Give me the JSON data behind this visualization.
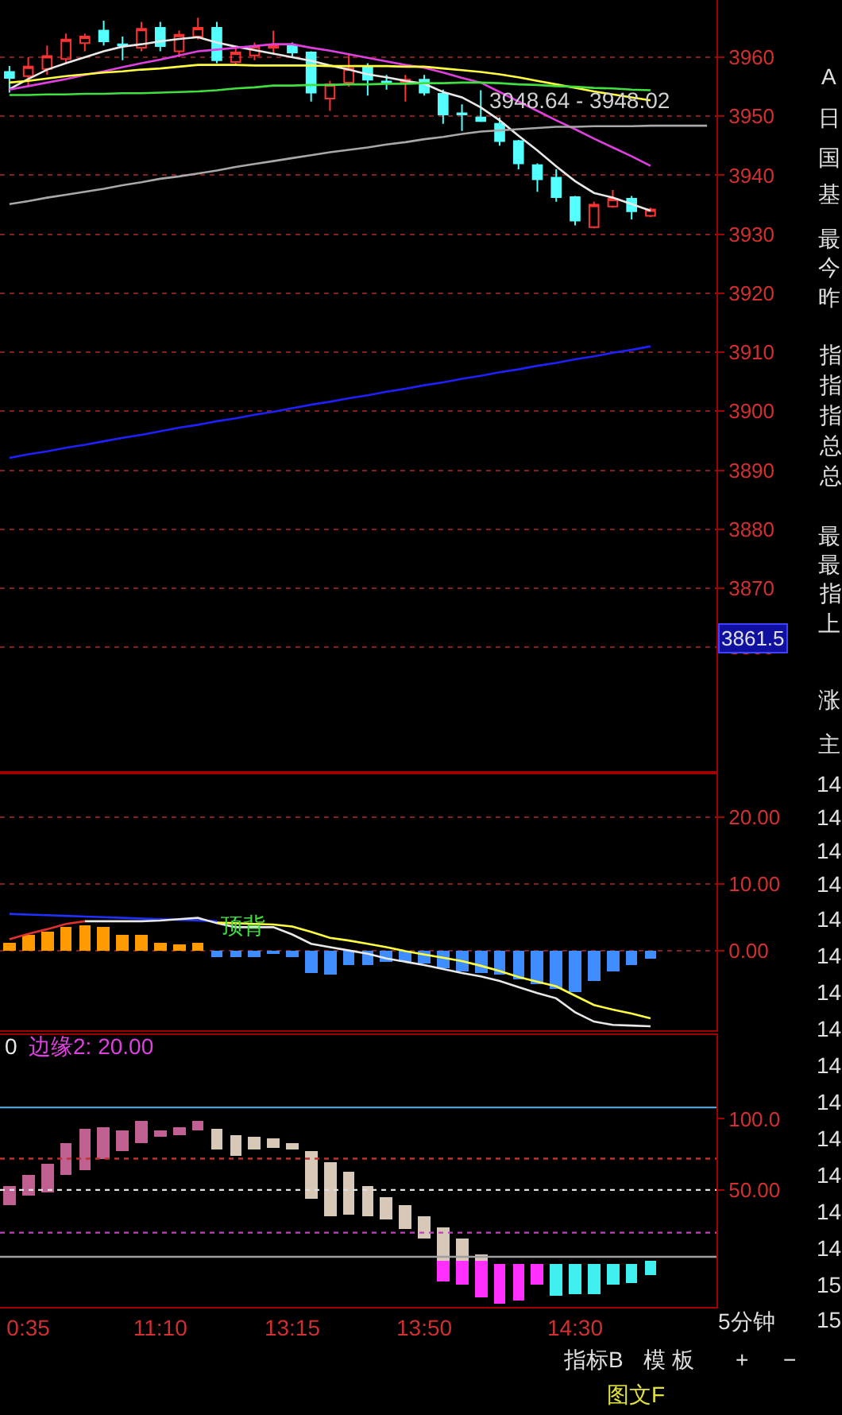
{
  "chart_data": [
    {
      "type": "candlestick",
      "categories": [
        null,
        null,
        null,
        null,
        null,
        null,
        null,
        null,
        null,
        null,
        null,
        null,
        null,
        null,
        null,
        null,
        null,
        null,
        null,
        null,
        null,
        null,
        null,
        null,
        null,
        null,
        null,
        null,
        null,
        null,
        null,
        null,
        null,
        null,
        null,
        null,
        null,
        null
      ],
      "ohlc": [
        [
          3957.5,
          3958.5,
          3954,
          3956.5
        ],
        [
          3956.8,
          3960,
          3955,
          3958.4
        ],
        [
          3958,
          3962,
          3957,
          3960.2
        ],
        [
          3959.7,
          3964,
          3959,
          3963
        ],
        [
          3962.4,
          3964,
          3961,
          3963.5
        ],
        [
          3964.5,
          3966.2,
          3962,
          3962.7
        ],
        [
          3962.2,
          3963.5,
          3959.5,
          3962
        ],
        [
          3961.6,
          3966,
          3961,
          3964.8
        ],
        [
          3965,
          3966,
          3961,
          3961.9
        ],
        [
          3961,
          3964.5,
          3960,
          3963.8
        ],
        [
          3963.5,
          3966.7,
          3963,
          3965
        ],
        [
          3965,
          3966,
          3959,
          3959.5
        ],
        [
          3959.2,
          3961.5,
          3958.5,
          3960.8
        ],
        [
          3960.3,
          3962.5,
          3959.5,
          3961.9
        ],
        [
          3961.6,
          3964.5,
          3960.5,
          3962
        ],
        [
          3962,
          3962.5,
          3960,
          3960.8
        ],
        [
          3960.8,
          3961,
          3952.5,
          3954
        ],
        [
          3953,
          3956,
          3950.9,
          3955.4
        ],
        [
          3955.7,
          3960.5,
          3955,
          3958.1
        ],
        [
          3958.4,
          3959,
          3953.5,
          3956.2
        ],
        [
          3955.9,
          3957,
          3954.5,
          3955.7
        ],
        [
          3955.7,
          3957,
          3952.5,
          3956.2
        ],
        [
          3956.2,
          3957,
          3953.5,
          3954
        ],
        [
          3953.8,
          3954.5,
          3948.7,
          3950.3
        ],
        [
          3950.5,
          3952,
          3947.5,
          3950.3
        ],
        [
          3949.8,
          3954.4,
          3949,
          3949.2
        ],
        [
          3948.7,
          3949.8,
          3945,
          3945.8
        ],
        [
          3945.8,
          3946,
          3941,
          3942
        ],
        [
          3941.7,
          3942,
          3937.2,
          3939.3
        ],
        [
          3939.6,
          3941,
          3935.5,
          3936.3
        ],
        [
          3936.3,
          3936.5,
          3931.5,
          3932.3
        ],
        [
          3931.2,
          3935.5,
          3931,
          3935
        ],
        [
          3934.7,
          3937.5,
          3934.5,
          3936
        ],
        [
          3936,
          3936.5,
          3932.5,
          3933.9
        ],
        [
          3933.1,
          3934.5,
          3932.9,
          3934.2
        ],
        null,
        null,
        null
      ],
      "colors": [
        "#54ffff",
        "#ff3232",
        "#ff3232",
        "#ff3232",
        "#ff3232",
        "#54ffff",
        "#54ffff",
        "#ff3232",
        "#54ffff",
        "#ff3232",
        "#ff3232",
        "#54ffff",
        "#ff3232",
        "#ff3232",
        "#ff3232",
        "#54ffff",
        "#54ffff",
        "#ff3232",
        "#ff3232",
        "#54ffff",
        "#54ffff",
        "#ff3232",
        "#54ffff",
        "#54ffff",
        "#54ffff",
        "#54ffff",
        "#54ffff",
        "#54ffff",
        "#54ffff",
        "#54ffff",
        "#54ffff",
        "#ff3232",
        "#ff3232",
        "#54ffff",
        "#ff3232",
        null,
        null,
        null
      ],
      "series": [
        {
          "type": "line",
          "color": "#e8e8e8",
          "values": [
            3954.6,
            3956.3,
            3957.9,
            3959.0,
            3960.0,
            3961.0,
            3961.8,
            3962.2,
            3962.7,
            3963.1,
            3963.4,
            3962.5,
            3961.8,
            3961.2,
            3960.6,
            3960.0,
            3959.4,
            3958.6,
            3957.9,
            3957.1,
            3956.6,
            3956.0,
            3955.5,
            3954.1,
            3953.2,
            3951.5,
            3949.3,
            3946.7,
            3944.2,
            3941.5,
            3939.0,
            3937.0,
            3936.2,
            3935.1,
            3934.0,
            null,
            null,
            null
          ]
        },
        {
          "type": "line",
          "color": "#e040e0",
          "values": [
            3954.5,
            3955.1,
            3955.7,
            3956.3,
            3957.0,
            3957.6,
            3958.3,
            3959.0,
            3959.6,
            3960.3,
            3961.0,
            3961.3,
            3961.6,
            3961.9,
            3962.2,
            3962.2,
            3961.6,
            3961.1,
            3960.5,
            3959.9,
            3959.3,
            3958.7,
            3958.2,
            3957.4,
            3956.5,
            3955.7,
            3954.1,
            3952.5,
            3950.9,
            3949.3,
            3947.8,
            3946.2,
            3944.7,
            3943.2,
            3941.6,
            null,
            null,
            null
          ]
        },
        {
          "type": "line",
          "color": "#ffff40",
          "values": [
            3955.7,
            3956.0,
            3956.4,
            3956.8,
            3957.1,
            3957.4,
            3957.6,
            3957.9,
            3958.1,
            3958.4,
            3958.7,
            3958.7,
            3958.7,
            3958.6,
            3958.6,
            3958.6,
            3958.6,
            3958.5,
            3958.5,
            3958.5,
            3958.5,
            3958.4,
            3958.4,
            3958.1,
            3957.8,
            3957.5,
            3957.1,
            3956.6,
            3956.0,
            3955.4,
            3954.8,
            3954.2,
            3953.7,
            3953.2,
            3952.7,
            null,
            null,
            null
          ]
        },
        {
          "type": "line",
          "color": "#40e040",
          "values": [
            3953.6,
            3953.6,
            3953.7,
            3953.7,
            3953.8,
            3953.8,
            3953.9,
            3953.9,
            3954.0,
            3954.1,
            3954.2,
            3954.4,
            3954.7,
            3954.9,
            3955.2,
            3955.2,
            3955.3,
            3955.3,
            3955.4,
            3955.4,
            3955.5,
            3955.5,
            3955.6,
            3955.6,
            3955.7,
            3955.7,
            3955.6,
            3955.4,
            3955.3,
            3955.1,
            3955.0,
            3954.8,
            3954.7,
            3954.5,
            3954.4,
            null,
            null,
            null
          ]
        },
        {
          "type": "line",
          "color": "#a8a8a8",
          "values": [
            3935.1,
            3935.6,
            3936.2,
            3936.7,
            3937.2,
            3937.7,
            3938.3,
            3938.8,
            3939.4,
            3939.8,
            3940.3,
            3940.8,
            3941.4,
            3941.9,
            3942.4,
            3942.9,
            3943.4,
            3943.9,
            3944.3,
            3944.7,
            3945.2,
            3945.6,
            3946.1,
            3946.5,
            3947.0,
            3947.4,
            3947.6,
            3947.8,
            3948.0,
            3948.2,
            3948.2,
            3948.3,
            3948.3,
            3948.3,
            3948.4,
            3948.4,
            3948.4,
            3948.4
          ]
        },
        {
          "type": "line",
          "color": "#2020ff",
          "values": [
            3892.1,
            3892.7,
            3893.2,
            3893.8,
            3894.3,
            3894.9,
            3895.5,
            3896.0,
            3896.6,
            3897.2,
            3897.7,
            3898.3,
            3898.8,
            3899.4,
            3899.9,
            3900.5,
            3901.1,
            3901.6,
            3902.2,
            3902.7,
            3903.3,
            3903.8,
            3904.4,
            3904.9,
            3905.5,
            3906.0,
            3906.6,
            3907.1,
            3907.7,
            3908.2,
            3908.8,
            3909.3,
            3909.9,
            3910.4,
            3911.0,
            null,
            null,
            null
          ]
        }
      ],
      "ylim": [
        3839,
        3969.7
      ],
      "yticks": [
        3860,
        3870,
        3880,
        3890,
        3900,
        3910,
        3920,
        3930,
        3940,
        3950,
        3960
      ],
      "grid": "y",
      "tick_labels": "y",
      "annotations": [
        "3948.64 - 3948.02",
        {
          "text": "3861.5",
          "y": 3861.5
        }
      ]
    },
    {
      "type": "bar",
      "categories": [
        null,
        null,
        null,
        null,
        null,
        null,
        null,
        null,
        null,
        null,
        null,
        null,
        null,
        null,
        null,
        null,
        null,
        null,
        null,
        null,
        null,
        null,
        null,
        null,
        null,
        null,
        null,
        null,
        null,
        null,
        null,
        null,
        null,
        null,
        null,
        null,
        null,
        null
      ],
      "values": [
        1.2,
        2.4,
        2.8,
        3.5,
        3.9,
        3.5,
        2.4,
        2.4,
        1.2,
        1.0,
        1.2,
        -0.9,
        -1.0,
        -0.9,
        -0.6,
        -0.9,
        -3.4,
        -3.6,
        -2.3,
        -2.1,
        -1.8,
        -1.8,
        -1.9,
        -2.7,
        -3.1,
        -3.4,
        -3.7,
        -4.3,
        -5.0,
        -5.7,
        -6.3,
        -4.7,
        -3.1,
        -2.3,
        -1.2,
        null,
        null,
        null
      ],
      "colors": [
        "#ff9a00",
        "#ff9a00",
        "#ff9a00",
        "#ff9a00",
        "#ff9a00",
        "#ff9a00",
        "#ff9a00",
        "#ff9a00",
        "#ff9a00",
        "#ff9a00",
        "#ff9a00",
        "#3f8cff",
        "#3f8cff",
        "#3f8cff",
        "#3f8cff",
        "#3f8cff",
        "#3f8cff",
        "#3f8cff",
        "#3f8cff",
        "#3f8cff",
        "#3f8cff",
        "#3f8cff",
        "#3f8cff",
        "#3f8cff",
        "#3f8cff",
        "#3f8cff",
        "#3f8cff",
        "#3f8cff",
        "#3f8cff",
        "#3f8cff",
        "#3f8cff",
        "#3f8cff",
        "#3f8cff",
        "#3f8cff",
        "#3f8cff",
        "#3f8cff",
        "#3f8cff",
        "#3f8cff"
      ],
      "series": [
        {
          "type": "line",
          "color": "#2030ff",
          "values": [
            5.5,
            5.4,
            5.3,
            5.2,
            5.1,
            5.0,
            4.9,
            4.8,
            4.7,
            4.6,
            4.5,
            4.4,
            null,
            null,
            null,
            null,
            null,
            null,
            null,
            null,
            null,
            null,
            null,
            null,
            null,
            null,
            null,
            null,
            null,
            null,
            null,
            null,
            null,
            null,
            null,
            null,
            null,
            null
          ]
        },
        {
          "type": "line",
          "color": "#e03030",
          "values": [
            1.7,
            2.5,
            3.2,
            4.0,
            4.4,
            null,
            null,
            null,
            null,
            null,
            null,
            null,
            null,
            null,
            null,
            null,
            null,
            null,
            null,
            null,
            null,
            null,
            null,
            null,
            null,
            null,
            null,
            null,
            null,
            null,
            null,
            null,
            null,
            null,
            null,
            null,
            null,
            null
          ]
        },
        {
          "type": "line",
          "color": "#e8e8e8",
          "values": [
            null,
            null,
            null,
            null,
            4.4,
            4.4,
            4.4,
            4.4,
            4.5,
            4.7,
            4.9,
            4.1,
            3.5,
            3.5,
            3.5,
            2.4,
            1.0,
            0.5,
            0,
            -0.5,
            -1.2,
            -1.7,
            -2.2,
            -2.8,
            -3.4,
            -3.9,
            -4.6,
            -5.5,
            -6.4,
            -7.2,
            -9.3,
            -10.7,
            -11.2,
            -11.3,
            -11.4,
            null,
            null,
            null
          ]
        },
        {
          "type": "line",
          "color": "#ffff40",
          "values": [
            null,
            null,
            null,
            null,
            null,
            null,
            null,
            null,
            null,
            null,
            null,
            4.2,
            4.1,
            4.0,
            3.9,
            3.6,
            2.8,
            1.9,
            1.5,
            1.0,
            0.5,
            -0.1,
            -0.6,
            -1.1,
            -1.6,
            -2.3,
            -3.1,
            -4.0,
            -4.7,
            -5.4,
            -6.8,
            -8.2,
            -8.9,
            -9.5,
            -10.2,
            null,
            null,
            null
          ]
        }
      ],
      "ylim": [
        -12,
        26.5
      ],
      "yticks": [
        {
          "value": 0,
          "label": "0.00"
        },
        {
          "value": 10,
          "label": "10.00"
        },
        {
          "value": 20,
          "label": "20.00"
        }
      ],
      "grid": "y",
      "tick_labels": "y",
      "annotations": [
        "顶背"
      ]
    },
    {
      "type": "bar",
      "categories": [
        null,
        "0:35",
        null,
        null,
        null,
        null,
        null,
        null,
        "11:10",
        null,
        null,
        null,
        null,
        null,
        null,
        "13:15",
        null,
        null,
        null,
        null,
        null,
        null,
        "13:50",
        null,
        null,
        null,
        null,
        null,
        null,
        null,
        "14:30",
        null,
        null,
        null,
        null,
        null,
        null,
        null
      ],
      "series": [
        {
          "base": [
            39,
            46,
            48,
            61,
            64,
            72,
            77,
            83,
            87,
            89,
            92,
            79,
            74,
            78,
            80,
            78,
            44,
            31,
            33,
            31,
            29,
            23,
            16,
            0,
            0,
            0,
            null,
            null,
            null,
            null,
            null,
            null,
            null,
            null,
            null,
            null,
            null,
            null
          ],
          "values": [
            14,
            15,
            20,
            22,
            29,
            22,
            15,
            16,
            5,
            5,
            7,
            14,
            15,
            9,
            6,
            5,
            33,
            39,
            30,
            22,
            16,
            16,
            16,
            24,
            16,
            5,
            null,
            null,
            null,
            null,
            null,
            null,
            null,
            null,
            null,
            null,
            null,
            null
          ],
          "colors": [
            "#c06090",
            "#c06090",
            "#c06090",
            "#c06090",
            "#c06090",
            "#c06090",
            "#c06090",
            "#c06090",
            "#c06090",
            "#c06090",
            "#c06090",
            "#d8c8b8",
            "#d8c8b8",
            "#d8c8b8",
            "#d8c8b8",
            "#d8c8b8",
            "#d8c8b8",
            "#d8c8b8",
            "#d8c8b8",
            "#d8c8b8",
            "#d8c8b8",
            "#d8c8b8",
            "#d8c8b8",
            "#d8c8b8",
            "#d8c8b8",
            "#d8c8b8",
            "#d8c8b8",
            "#d8c8b8",
            "#d8c8b8",
            "#d8c8b8",
            "#d8c8b8",
            "#d8c8b8",
            "#d8c8b8",
            "#d8c8b8",
            "#d8c8b8",
            "#d8c8b8",
            "#d8c8b8",
            "#d8c8b8"
          ]
        },
        {
          "base": [
            null,
            null,
            null,
            null,
            null,
            null,
            null,
            null,
            null,
            null,
            null,
            null,
            null,
            null,
            null,
            null,
            null,
            null,
            null,
            null,
            null,
            null,
            null,
            -14,
            -17,
            -26,
            -30,
            -28,
            -17,
            -24,
            -23,
            -23,
            -17,
            -15,
            -10,
            null,
            null,
            null
          ],
          "values": [
            null,
            null,
            null,
            null,
            null,
            null,
            null,
            null,
            null,
            null,
            null,
            null,
            null,
            null,
            null,
            null,
            null,
            null,
            null,
            null,
            null,
            null,
            null,
            14,
            17,
            26,
            28,
            26,
            15,
            22,
            21,
            21,
            15,
            13,
            10,
            null,
            null,
            null
          ],
          "colors": [
            "#ff30ff",
            "#ff30ff",
            "#ff30ff",
            "#ff30ff",
            "#ff30ff",
            "#ff30ff",
            "#ff30ff",
            "#ff30ff",
            "#ff30ff",
            "#ff30ff",
            "#ff30ff",
            "#ff30ff",
            "#ff30ff",
            "#ff30ff",
            "#ff30ff",
            "#ff30ff",
            "#ff30ff",
            "#ff30ff",
            "#ff30ff",
            "#ff30ff",
            "#ff30ff",
            "#ff30ff",
            "#ff30ff",
            "#ff30ff",
            "#ff30ff",
            "#ff30ff",
            "#ff30ff",
            "#ff30ff",
            "#ff30ff",
            "#40f0f0",
            "#40f0f0",
            "#40f0f0",
            "#40f0f0",
            "#40f0f0",
            "#40f0f0",
            "#40f0f0",
            "#40f0f0",
            "#40f0f0"
          ]
        }
      ],
      "ylim": [
        -32.2,
        158.9
      ],
      "yticks": [
        {
          "value": 50,
          "label": "50.00"
        },
        {
          "value": 100,
          "label": "100.0"
        }
      ],
      "ref_lines": [
        {
          "axis": "y",
          "value": 108,
          "color": "#4f9fd0",
          "line_style": "solid"
        },
        {
          "axis": "y",
          "value": 72,
          "color": "#c03030",
          "line_style": "dotted"
        },
        {
          "axis": "y",
          "value": 50,
          "color": "#e0e0e0",
          "line_style": "dotted"
        },
        {
          "axis": "y",
          "value": 20,
          "color": "#c040c0",
          "line_style": "dotted"
        },
        {
          "axis": "y",
          "value": 3,
          "color": "#a0a0a0",
          "line_style": "solid"
        }
      ],
      "annotations": [
        "0",
        "边缘2: 20.00"
      ]
    },
    {
      "type": "other",
      "annotations": [
        "A",
        "日",
        "国",
        "基",
        "最",
        "今",
        "昨",
        "指",
        "指",
        "指",
        "总",
        "总",
        "最",
        "最",
        "指",
        "上",
        "涨",
        "主",
        "14",
        "14",
        "14",
        "14",
        "14",
        "14",
        "14",
        "14",
        "14",
        "14",
        "14",
        "14",
        "14",
        "14",
        "15",
        "15",
        "5分钟",
        "指标B",
        "模 板",
        "+",
        "−",
        "图文F"
      ]
    }
  ]
}
